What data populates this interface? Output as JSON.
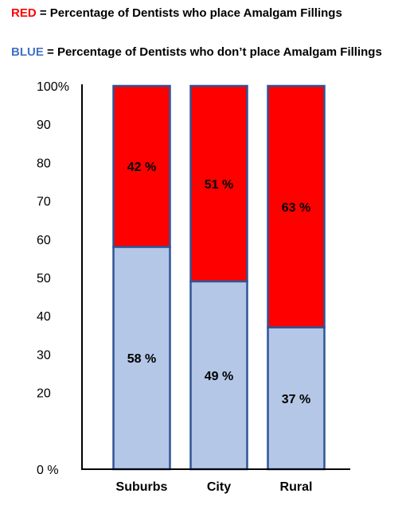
{
  "legend": {
    "red_key": "RED",
    "red_text": "=  Percentage of Dentists who place Amalgam Fillings",
    "blue_key": "BLUE",
    "blue_text": "= Percentage of Dentists who don’t place Amalgam Fillings"
  },
  "chart_data": {
    "type": "bar",
    "stacked": true,
    "categories": [
      "Suburbs",
      "City",
      "Rural"
    ],
    "series": [
      {
        "values": [
          58,
          49,
          37
        ],
        "labels": [
          "58 %",
          "49 %",
          "37 %"
        ],
        "color": "#b4c7e7"
      },
      {
        "values": [
          42,
          51,
          63
        ],
        "labels": [
          "42 %",
          "51 %",
          "63 %"
        ],
        "color": "#ff0000"
      }
    ],
    "ylim": [
      0,
      100
    ],
    "yticks": [
      0,
      10,
      20,
      30,
      40,
      50,
      60,
      70,
      80,
      90,
      100
    ],
    "ytick_labels": [
      "0 %",
      "",
      "20",
      "30",
      "40",
      "50",
      "60",
      "70",
      "80",
      "90",
      "100%"
    ],
    "bar_outline_color": "#2f5597",
    "grid": false,
    "legend": "top"
  }
}
